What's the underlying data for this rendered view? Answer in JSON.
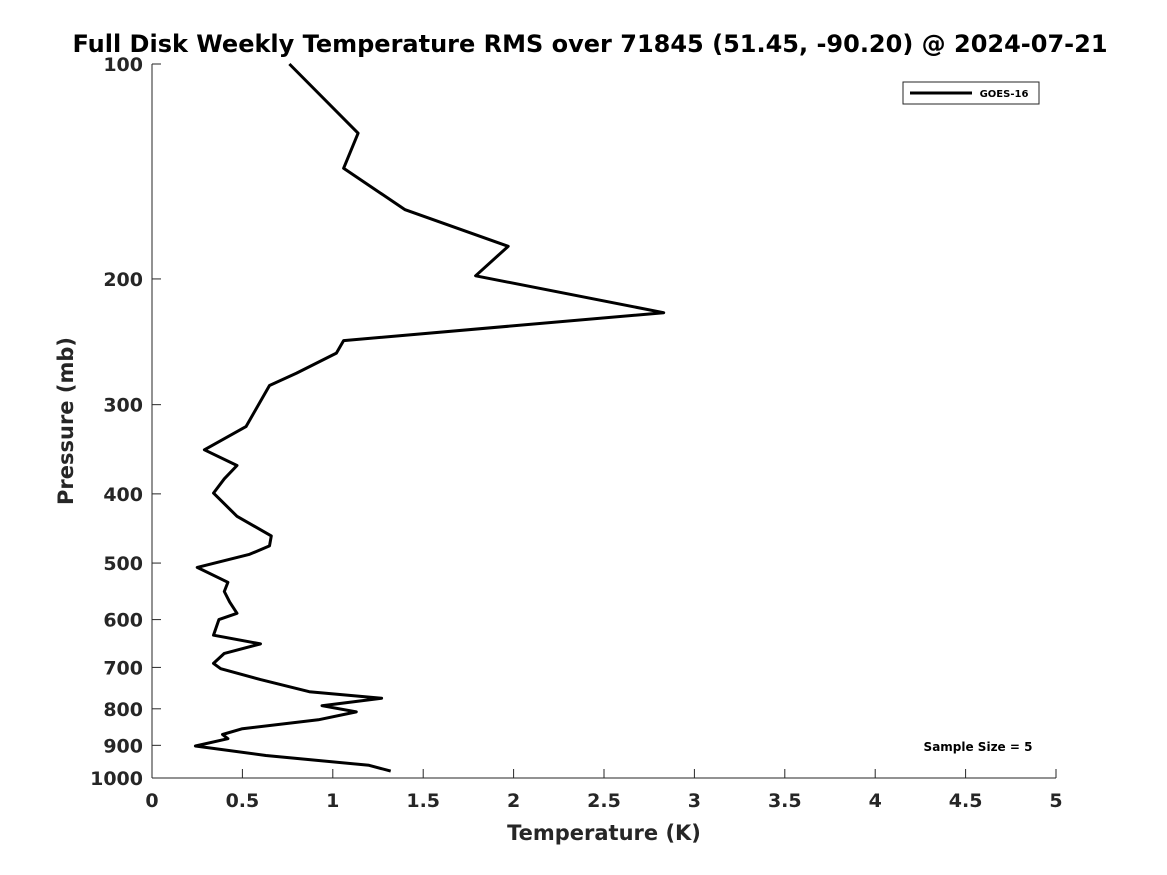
{
  "chart_data": {
    "type": "line",
    "title": "Full Disk Weekly Temperature RMS over 71845 (51.45, -90.20) @ 2024-07-21",
    "xlabel": "Temperature (K)",
    "ylabel": "Pressure (mb)",
    "xlim": [
      0,
      5
    ],
    "ylim": [
      100,
      1000
    ],
    "yscale": "log",
    "yreversed": true,
    "grid": false,
    "legend_position": "top-right",
    "x_ticks": [
      "0",
      "0.5",
      "1",
      "1.5",
      "2",
      "2.5",
      "3",
      "3.5",
      "4",
      "4.5",
      "5"
    ],
    "y_ticks": [
      "100",
      "200",
      "300",
      "400",
      "500",
      "600",
      "700",
      "800",
      "900",
      "1000"
    ],
    "series": [
      {
        "name": "GOES-16",
        "color": "#000000",
        "points": [
          [
            0.76,
            100
          ],
          [
            1.14,
            125
          ],
          [
            1.06,
            140
          ],
          [
            1.4,
            160
          ],
          [
            1.97,
            180
          ],
          [
            1.79,
            198
          ],
          [
            2.83,
            223
          ],
          [
            1.06,
            244
          ],
          [
            1.02,
            254
          ],
          [
            0.8,
            271
          ],
          [
            0.65,
            282
          ],
          [
            0.52,
            322
          ],
          [
            0.29,
            347
          ],
          [
            0.47,
            365
          ],
          [
            0.4,
            381
          ],
          [
            0.34,
            399
          ],
          [
            0.47,
            430
          ],
          [
            0.66,
            458
          ],
          [
            0.65,
            473
          ],
          [
            0.54,
            486
          ],
          [
            0.25,
            507
          ],
          [
            0.42,
            532
          ],
          [
            0.4,
            548
          ],
          [
            0.43,
            567
          ],
          [
            0.47,
            588
          ],
          [
            0.37,
            600
          ],
          [
            0.34,
            631
          ],
          [
            0.6,
            649
          ],
          [
            0.4,
            669
          ],
          [
            0.34,
            691
          ],
          [
            0.38,
            703
          ],
          [
            0.6,
            728
          ],
          [
            0.87,
            757
          ],
          [
            1.27,
            773
          ],
          [
            0.94,
            792
          ],
          [
            1.13,
            808
          ],
          [
            0.92,
            829
          ],
          [
            0.5,
            853
          ],
          [
            0.39,
            869
          ],
          [
            0.42,
            881
          ],
          [
            0.24,
            902
          ],
          [
            0.63,
            930
          ],
          [
            1.2,
            960
          ],
          [
            1.32,
            978
          ]
        ]
      }
    ]
  },
  "annotations": {
    "sample_size": "Sample Size = 5"
  }
}
